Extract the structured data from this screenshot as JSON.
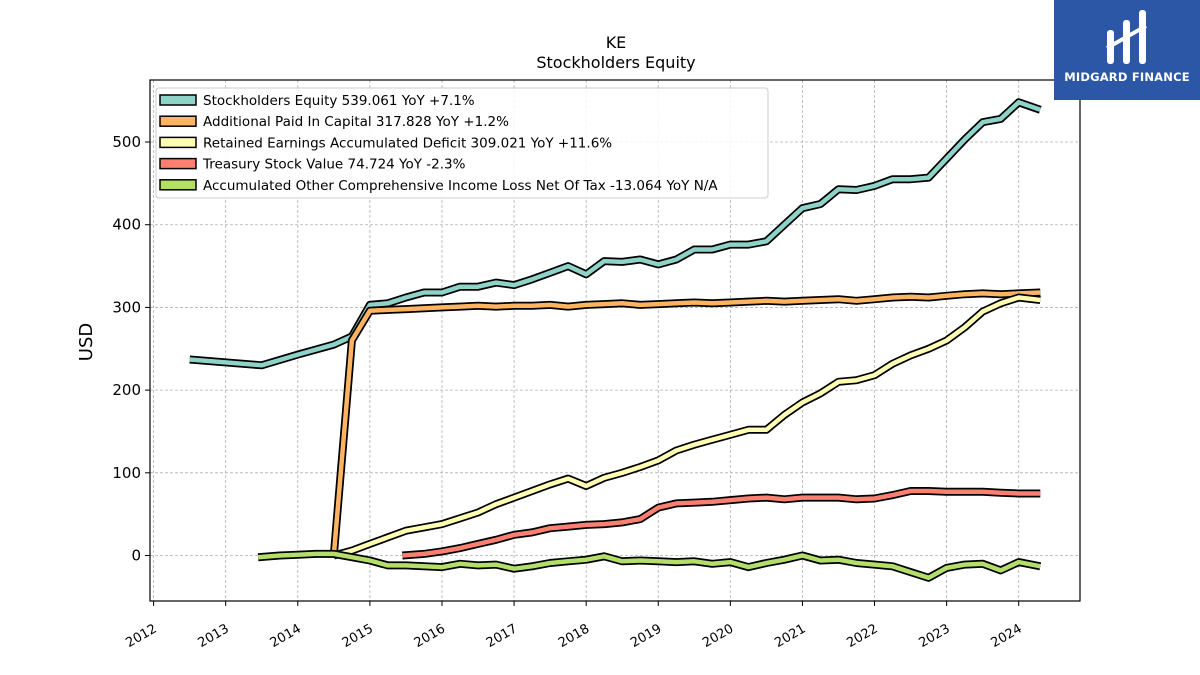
{
  "chart_data": {
    "type": "line",
    "title": "KE",
    "subtitle": "Stockholders  Equity",
    "ylabel": "USD",
    "xlabel": "",
    "xlim": [
      2011.95,
      2024.85
    ],
    "ylim": [
      -55,
      575
    ],
    "yticks": [
      0,
      100,
      200,
      300,
      400,
      500
    ],
    "xticks": [
      "2012",
      "2013",
      "2014",
      "2015",
      "2016",
      "2017",
      "2018",
      "2019",
      "2020",
      "2021",
      "2022",
      "2023",
      "2024"
    ],
    "grid": true,
    "legend_position": "top-left",
    "series": [
      {
        "name": "Stockholders Equity  539.061 YoY +7.1%",
        "color": "#8dd3c7",
        "x": [
          2012.5,
          2013.5,
          2014.0,
          2014.5,
          2014.75,
          2015.0,
          2015.25,
          2015.5,
          2015.75,
          2016.0,
          2016.25,
          2016.5,
          2016.75,
          2017.0,
          2017.25,
          2017.5,
          2017.75,
          2018.0,
          2018.25,
          2018.5,
          2018.75,
          2019.0,
          2019.25,
          2019.5,
          2019.75,
          2020.0,
          2020.25,
          2020.5,
          2020.75,
          2021.0,
          2021.25,
          2021.5,
          2021.75,
          2022.0,
          2022.25,
          2022.5,
          2022.75,
          2023.0,
          2023.25,
          2023.5,
          2023.75,
          2024.0,
          2024.3
        ],
        "y": [
          237,
          230,
          243,
          255,
          265,
          303,
          305,
          312,
          318,
          318,
          325,
          325,
          330,
          327,
          334,
          342,
          350,
          340,
          356,
          355,
          358,
          352,
          358,
          370,
          370,
          376,
          376,
          380,
          400,
          420,
          425,
          443,
          442,
          447,
          455,
          455,
          457,
          480,
          503,
          524,
          528,
          548,
          539
        ]
      },
      {
        "name": "Additional Paid In Capital  317.828 YoY +1.2%",
        "color": "#fdb462",
        "x": [
          2014.5,
          2014.75,
          2015.0,
          2015.25,
          2015.5,
          2015.75,
          2016.0,
          2016.25,
          2016.5,
          2016.75,
          2017.0,
          2017.25,
          2017.5,
          2017.75,
          2018.0,
          2018.25,
          2018.5,
          2018.75,
          2019.0,
          2019.25,
          2019.5,
          2019.75,
          2020.0,
          2020.25,
          2020.5,
          2020.75,
          2021.0,
          2021.25,
          2021.5,
          2021.75,
          2022.0,
          2022.25,
          2022.5,
          2022.75,
          2023.0,
          2023.25,
          2023.5,
          2023.75,
          2024.0,
          2024.3
        ],
        "y": [
          0,
          260,
          296,
          297,
          298,
          299,
          300,
          301,
          302,
          301,
          302,
          302,
          303,
          301,
          303,
          304,
          305,
          303,
          304,
          305,
          306,
          305,
          306,
          307,
          308,
          307,
          308,
          309,
          310,
          308,
          310,
          312,
          313,
          312,
          314,
          316,
          317,
          316,
          317,
          318
        ]
      },
      {
        "name": "Retained Earnings Accumulated Deficit  309.021 YoY +11.6%",
        "color": "#ffffb3",
        "x": [
          2014.5,
          2014.75,
          2015.0,
          2015.25,
          2015.5,
          2015.75,
          2016.0,
          2016.25,
          2016.5,
          2016.75,
          2017.0,
          2017.25,
          2017.5,
          2017.75,
          2018.0,
          2018.25,
          2018.5,
          2018.75,
          2019.0,
          2019.25,
          2019.5,
          2019.75,
          2020.0,
          2020.25,
          2020.5,
          2020.75,
          2021.0,
          2021.25,
          2021.5,
          2021.75,
          2022.0,
          2022.25,
          2022.5,
          2022.75,
          2023.0,
          2023.25,
          2023.5,
          2023.75,
          2024.0,
          2024.3
        ],
        "y": [
          0,
          6,
          14,
          22,
          30,
          34,
          38,
          45,
          52,
          62,
          70,
          78,
          86,
          93,
          84,
          94,
          100,
          107,
          115,
          127,
          134,
          140,
          146,
          152,
          152,
          170,
          185,
          196,
          210,
          212,
          218,
          232,
          242,
          250,
          260,
          276,
          295,
          305,
          312,
          309
        ]
      },
      {
        "name": "Treasury Stock Value  74.724 YoY -2.3%",
        "color": "#fb8072",
        "x": [
          2015.45,
          2015.75,
          2016.0,
          2016.25,
          2016.5,
          2016.75,
          2017.0,
          2017.25,
          2017.5,
          2017.75,
          2018.0,
          2018.25,
          2018.5,
          2018.75,
          2019.0,
          2019.25,
          2019.5,
          2019.75,
          2020.0,
          2020.25,
          2020.5,
          2020.75,
          2021.0,
          2021.25,
          2021.5,
          2021.75,
          2022.0,
          2022.25,
          2022.5,
          2022.75,
          2023.0,
          2023.25,
          2023.5,
          2023.75,
          2024.0,
          2024.3
        ],
        "y": [
          0,
          2,
          5,
          9,
          14,
          19,
          25,
          28,
          33,
          35,
          37,
          38,
          40,
          44,
          58,
          63,
          64,
          65,
          67,
          69,
          70,
          68,
          70,
          70,
          70,
          68,
          69,
          73,
          78,
          78,
          77,
          77,
          77,
          76,
          75,
          75
        ]
      },
      {
        "name": "Accumulated Other Comprehensive Income Loss Net Of Tax  -13.064 YoY N/A",
        "color": "#b3de69",
        "x": [
          2013.45,
          2013.75,
          2014.0,
          2014.25,
          2014.5,
          2014.75,
          2015.0,
          2015.25,
          2015.5,
          2015.75,
          2016.0,
          2016.25,
          2016.5,
          2016.75,
          2017.0,
          2017.25,
          2017.5,
          2017.75,
          2018.0,
          2018.25,
          2018.5,
          2018.75,
          2019.0,
          2019.25,
          2019.5,
          2019.75,
          2020.0,
          2020.25,
          2020.5,
          2020.75,
          2021.0,
          2021.25,
          2021.5,
          2021.75,
          2022.0,
          2022.25,
          2022.5,
          2022.75,
          2023.0,
          2023.25,
          2023.5,
          2023.75,
          2024.0,
          2024.3
        ],
        "y": [
          -2,
          0,
          1,
          2,
          2,
          -2,
          -6,
          -12,
          -12,
          -13,
          -14,
          -10,
          -12,
          -11,
          -16,
          -13,
          -9,
          -7,
          -5,
          -1,
          -7,
          -6,
          -7,
          -8,
          -7,
          -10,
          -8,
          -14,
          -9,
          -5,
          0,
          -6,
          -5,
          -9,
          -11,
          -13,
          -20,
          -27,
          -15,
          -11,
          -10,
          -18,
          -8,
          -13
        ]
      }
    ]
  },
  "logo": {
    "text": "MIDGARD FINANCE"
  }
}
